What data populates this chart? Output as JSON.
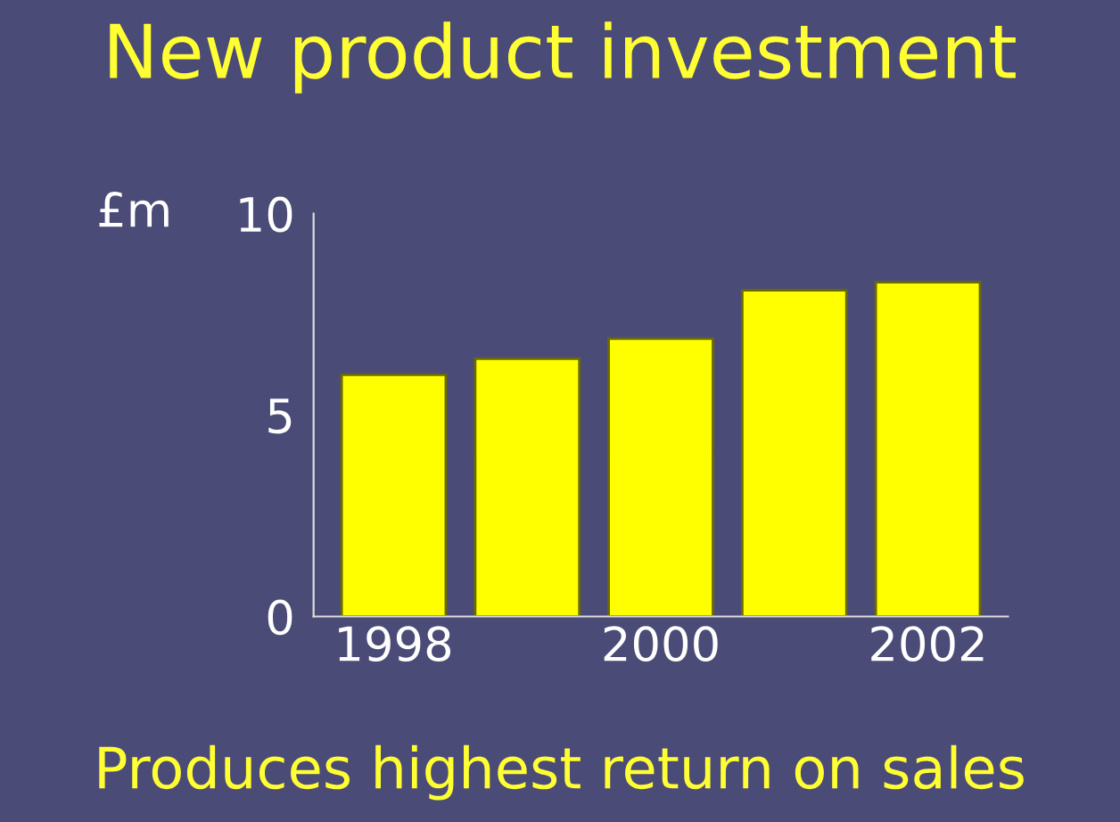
{
  "chart_data": {
    "type": "bar",
    "title": "New product investment",
    "ylabel": "£m",
    "categories": [
      "1998",
      null,
      "2000",
      null,
      "2002"
    ],
    "values": [
      6.0,
      6.4,
      6.9,
      8.1,
      8.3
    ],
    "color": "#ffff00",
    "ylim": [
      0,
      10
    ],
    "yticks": [
      0,
      5,
      10
    ],
    "grid": false,
    "annotations": [
      "Produces highest return on sales"
    ]
  }
}
